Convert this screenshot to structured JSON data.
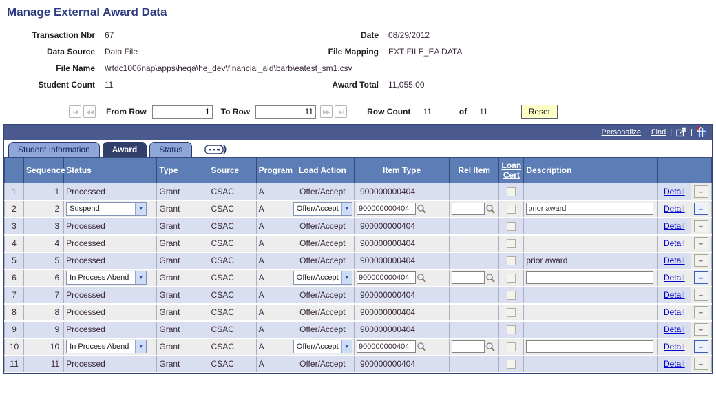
{
  "page": {
    "title": "Manage External Award Data"
  },
  "header_fields": {
    "transaction_nbr": {
      "label": "Transaction Nbr",
      "value": "67"
    },
    "date": {
      "label": "Date",
      "value": "08/29/2012"
    },
    "data_source": {
      "label": "Data Source",
      "value": "Data File"
    },
    "file_mapping": {
      "label": "File Mapping",
      "value": "EXT FILE_EA DATA"
    },
    "file_name": {
      "label": "File Name",
      "value": "\\\\rtdc1006nap\\apps\\heqa\\he_dev\\financial_aid\\barb\\eatest_sm1.csv"
    },
    "student_count": {
      "label": "Student Count",
      "value": "11"
    },
    "award_total": {
      "label": "Award Total",
      "value": "11,055.00"
    }
  },
  "row_nav": {
    "icons": {
      "first": "|◀",
      "prev": "◀◀",
      "next": "▶▶",
      "last": "▶|"
    },
    "from_row_label": "From Row",
    "from_row_value": "1",
    "to_row_label": "To Row",
    "to_row_value": "11",
    "row_count_label": "Row Count",
    "row_count_value": "11",
    "of_label": "of",
    "total_rows_value": "11",
    "reset_label": "Reset"
  },
  "grid_toolbar": {
    "personalize_label": "Personalize",
    "find_label": "Find",
    "separator": "|"
  },
  "tabs": [
    {
      "label": "Student Information",
      "active": false
    },
    {
      "label": "Award",
      "active": true
    },
    {
      "label": "Status",
      "active": false
    }
  ],
  "grid": {
    "columns": [
      "",
      "Sequence",
      "Status",
      "Type",
      "Source",
      "Program",
      "Load Action",
      "Item Type",
      "Rel Item",
      "Loan Cert",
      "Description",
      "",
      ""
    ],
    "detail_label": "Detail",
    "status_colors": {
      "header_bg": "#5d7db6",
      "row_odd_bg": "#d9dff1",
      "row_even_bg": "#ededed"
    },
    "rows": [
      {
        "num": "1",
        "sequence": "1",
        "status": "Processed",
        "editable": false,
        "type": "Grant",
        "source": "CSAC",
        "program": "A",
        "load_action": "Offer/Accept",
        "item_type": "900000000404",
        "rel_item": "",
        "loan_cert": false,
        "description": ""
      },
      {
        "num": "2",
        "sequence": "2",
        "status": "Suspend",
        "editable": true,
        "type": "Grant",
        "source": "CSAC",
        "program": "A",
        "load_action": "Offer/Accept",
        "item_type": "900000000404",
        "rel_item": "",
        "loan_cert": false,
        "description": "prior award"
      },
      {
        "num": "3",
        "sequence": "3",
        "status": "Processed",
        "editable": false,
        "type": "Grant",
        "source": "CSAC",
        "program": "A",
        "load_action": "Offer/Accept",
        "item_type": "900000000404",
        "rel_item": "",
        "loan_cert": false,
        "description": ""
      },
      {
        "num": "4",
        "sequence": "4",
        "status": "Processed",
        "editable": false,
        "type": "Grant",
        "source": "CSAC",
        "program": "A",
        "load_action": "Offer/Accept",
        "item_type": "900000000404",
        "rel_item": "",
        "loan_cert": false,
        "description": ""
      },
      {
        "num": "5",
        "sequence": "5",
        "status": "Processed",
        "editable": false,
        "type": "Grant",
        "source": "CSAC",
        "program": "A",
        "load_action": "Offer/Accept",
        "item_type": "900000000404",
        "rel_item": "",
        "loan_cert": false,
        "description": "prior award"
      },
      {
        "num": "6",
        "sequence": "6",
        "status": "In Process Abend",
        "editable": true,
        "type": "Grant",
        "source": "CSAC",
        "program": "A",
        "load_action": "Offer/Accept",
        "item_type": "900000000404",
        "rel_item": "",
        "loan_cert": false,
        "description": ""
      },
      {
        "num": "7",
        "sequence": "7",
        "status": "Processed",
        "editable": false,
        "type": "Grant",
        "source": "CSAC",
        "program": "A",
        "load_action": "Offer/Accept",
        "item_type": "900000000404",
        "rel_item": "",
        "loan_cert": false,
        "description": ""
      },
      {
        "num": "8",
        "sequence": "8",
        "status": "Processed",
        "editable": false,
        "type": "Grant",
        "source": "CSAC",
        "program": "A",
        "load_action": "Offer/Accept",
        "item_type": "900000000404",
        "rel_item": "",
        "loan_cert": false,
        "description": ""
      },
      {
        "num": "9",
        "sequence": "9",
        "status": "Processed",
        "editable": false,
        "type": "Grant",
        "source": "CSAC",
        "program": "A",
        "load_action": "Offer/Accept",
        "item_type": "900000000404",
        "rel_item": "",
        "loan_cert": false,
        "description": ""
      },
      {
        "num": "10",
        "sequence": "10",
        "status": "In Process Abend",
        "editable": true,
        "type": "Grant",
        "source": "CSAC",
        "program": "A",
        "load_action": "Offer/Accept",
        "item_type": "900000000404",
        "rel_item": "",
        "loan_cert": false,
        "description": ""
      },
      {
        "num": "11",
        "sequence": "11",
        "status": "Processed",
        "editable": false,
        "type": "Grant",
        "source": "CSAC",
        "program": "A",
        "load_action": "Offer/Accept",
        "item_type": "900000000404",
        "rel_item": "",
        "loan_cert": false,
        "description": ""
      }
    ]
  }
}
